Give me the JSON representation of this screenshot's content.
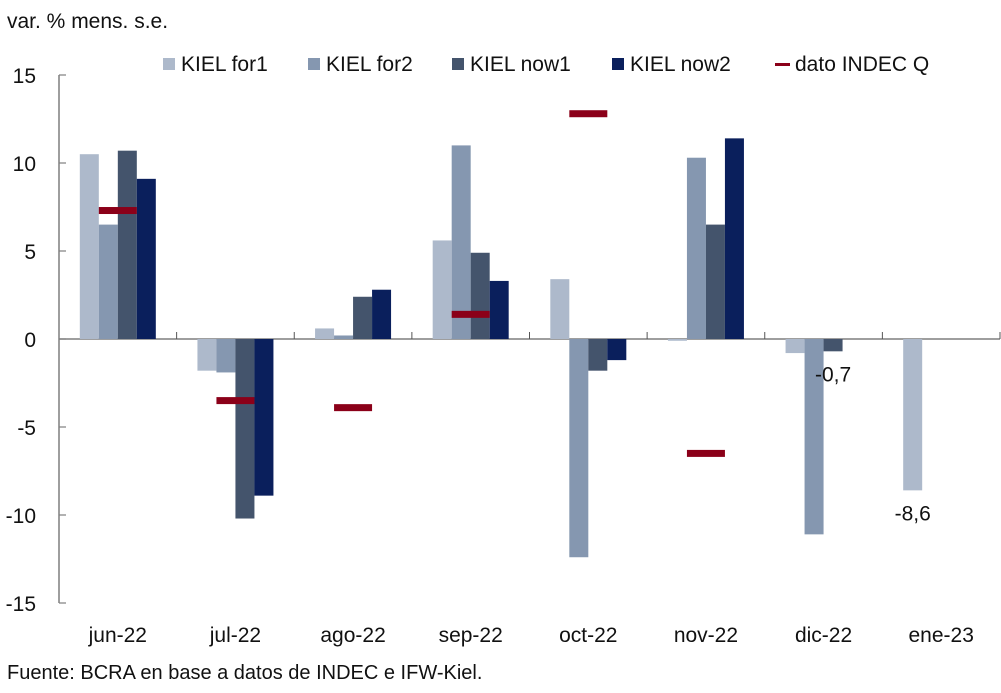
{
  "chart_data": {
    "type": "bar",
    "title": "",
    "ylabel": "var. % mens. s.e.",
    "xlabel": "",
    "ylim": [
      -15,
      15
    ],
    "yticks": [
      15,
      10,
      5,
      0,
      -5,
      -10,
      -15
    ],
    "ytick_labels": [
      "15",
      "10",
      "5",
      "0",
      "-5",
      "-10",
      "-15"
    ],
    "categories": [
      "jun-22",
      "jul-22",
      "ago-22",
      "sep-22",
      "oct-22",
      "nov-22",
      "dic-22",
      "ene-23"
    ],
    "grid": false,
    "legend_position": "top",
    "series": [
      {
        "name": "KIEL for1",
        "kind": "bar",
        "color": "#adb9cb",
        "values": [
          10.5,
          -1.8,
          0.6,
          5.6,
          3.4,
          -0.1,
          -0.8,
          -8.6
        ]
      },
      {
        "name": "KIEL for2",
        "kind": "bar",
        "color": "#8597b0",
        "values": [
          6.5,
          -1.9,
          0.2,
          11.0,
          -12.4,
          10.3,
          -11.1,
          null
        ]
      },
      {
        "name": "KIEL now1",
        "kind": "bar",
        "color": "#44546c",
        "values": [
          10.7,
          -10.2,
          2.4,
          4.9,
          -1.8,
          6.5,
          -0.7,
          null
        ]
      },
      {
        "name": "KIEL now2",
        "kind": "bar",
        "color": "#0a1f5c",
        "values": [
          9.1,
          -8.9,
          2.8,
          3.3,
          -1.2,
          11.4,
          null,
          null
        ]
      },
      {
        "name": "dato INDEC Q",
        "kind": "marker",
        "color": "#8b0019",
        "values": [
          7.3,
          -3.5,
          -3.9,
          1.4,
          12.8,
          -6.5,
          null,
          null
        ]
      }
    ],
    "annotations": [
      {
        "text": "-0,7",
        "category": "dic-22",
        "series": "KIEL now1"
      },
      {
        "text": "-8,6",
        "category": "ene-23",
        "series": "KIEL for1"
      }
    ],
    "source": "Fuente: BCRA en base a datos de INDEC e IFW-Kiel."
  }
}
